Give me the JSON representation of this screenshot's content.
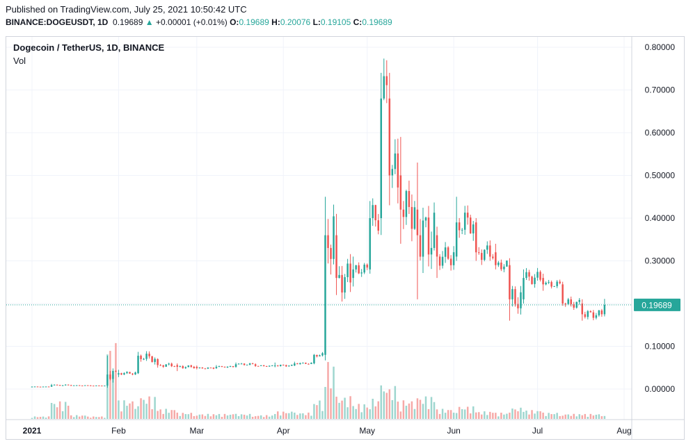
{
  "header": {
    "published": "Published on TradingView.com, July 25, 2021 10:50:42 UTC",
    "symbol": "BINANCE:DOGEUSDT, 1D",
    "last": "0.19689",
    "change_arrow": "▲",
    "change": "+0.00001 (+0.01%)",
    "o_label": "O:",
    "o_value": "0.19689",
    "h_label": "H:",
    "h_value": "0.20076",
    "l_label": "L:",
    "l_value": "0.19105",
    "c_label": "C:",
    "c_value": "0.19689"
  },
  "legend": {
    "title": "Dogecoin / TetherUS, 1D, BINANCE",
    "vol": "Vol"
  },
  "colors": {
    "up": "#26a69a",
    "down": "#ef5350",
    "up_vol": "#9ed6cf",
    "down_vol": "#f6a9a7",
    "grid": "#f0f3fa",
    "price_line": "#26a69a"
  },
  "chart_data": {
    "type": "candlestick",
    "title": "Dogecoin / TetherUS, 1D, BINANCE",
    "y_tick_labels": [
      "0.80000",
      "0.70000",
      "0.60000",
      "0.50000",
      "0.40000",
      "0.30000",
      "0.10000",
      "0.00000"
    ],
    "y_ticks": [
      0.8,
      0.7,
      0.6,
      0.5,
      0.4,
      0.3,
      0.1,
      0.0
    ],
    "ylim": [
      -0.07,
      0.82
    ],
    "x_tick_labels": [
      "2021",
      "Feb",
      "Mar",
      "Apr",
      "May",
      "Jun",
      "Jul",
      "Aug"
    ],
    "x_ticks": [
      "2021-01-01",
      "2021-02-01",
      "2021-03-01",
      "2021-04-01",
      "2021-05-01",
      "2021-06-01",
      "2021-07-01",
      "2021-08-01"
    ],
    "last_price": 0.19689,
    "last_price_label": "0.19689",
    "series": [
      {
        "name": "Vol",
        "values": []
      }
    ],
    "candles_by_week": [
      {
        "date": "2021-01-01",
        "open": 0.0047,
        "high": 0.006,
        "low": 0.0045,
        "close": 0.0056,
        "vol": 0.2
      },
      {
        "date": "2021-01-08",
        "open": 0.0056,
        "high": 0.012,
        "low": 0.005,
        "close": 0.009,
        "vol": 1.4
      },
      {
        "date": "2021-01-15",
        "open": 0.009,
        "high": 0.01,
        "low": 0.0075,
        "close": 0.0085,
        "vol": 0.3
      },
      {
        "date": "2021-01-22",
        "open": 0.0085,
        "high": 0.009,
        "low": 0.0072,
        "close": 0.008,
        "vol": 0.2
      },
      {
        "date": "2021-01-28",
        "open": 0.008,
        "high": 0.078,
        "low": 0.0075,
        "close": 0.034,
        "vol": 6.0
      },
      {
        "date": "2021-02-01",
        "open": 0.034,
        "high": 0.045,
        "low": 0.028,
        "close": 0.037,
        "vol": 1.5
      },
      {
        "date": "2021-02-08",
        "open": 0.037,
        "high": 0.087,
        "low": 0.036,
        "close": 0.078,
        "vol": 1.8
      },
      {
        "date": "2021-02-15",
        "open": 0.07,
        "high": 0.072,
        "low": 0.05,
        "close": 0.056,
        "vol": 0.8
      },
      {
        "date": "2021-02-22",
        "open": 0.056,
        "high": 0.06,
        "low": 0.042,
        "close": 0.052,
        "vol": 0.5
      },
      {
        "date": "2021-03-01",
        "open": 0.052,
        "high": 0.055,
        "low": 0.046,
        "close": 0.049,
        "vol": 0.4
      },
      {
        "date": "2021-03-08",
        "open": 0.049,
        "high": 0.056,
        "low": 0.047,
        "close": 0.052,
        "vol": 0.4
      },
      {
        "date": "2021-03-15",
        "open": 0.052,
        "high": 0.062,
        "low": 0.05,
        "close": 0.058,
        "vol": 0.4
      },
      {
        "date": "2021-03-22",
        "open": 0.058,
        "high": 0.06,
        "low": 0.052,
        "close": 0.054,
        "vol": 0.3
      },
      {
        "date": "2021-03-29",
        "open": 0.054,
        "high": 0.062,
        "low": 0.051,
        "close": 0.055,
        "vol": 0.6
      },
      {
        "date": "2021-04-05",
        "open": 0.055,
        "high": 0.064,
        "low": 0.054,
        "close": 0.06,
        "vol": 0.5
      },
      {
        "date": "2021-04-12",
        "open": 0.06,
        "high": 0.08,
        "low": 0.058,
        "close": 0.08,
        "vol": 1.5
      },
      {
        "date": "2021-04-16",
        "open": 0.08,
        "high": 0.45,
        "low": 0.078,
        "close": 0.36,
        "vol": 4.5
      },
      {
        "date": "2021-04-20",
        "open": 0.36,
        "high": 0.41,
        "low": 0.22,
        "close": 0.26,
        "vol": 1.8
      },
      {
        "date": "2021-04-26",
        "open": 0.26,
        "high": 0.31,
        "low": 0.24,
        "close": 0.28,
        "vol": 1.2
      },
      {
        "date": "2021-05-02",
        "open": 0.28,
        "high": 0.44,
        "low": 0.27,
        "close": 0.4,
        "vol": 1.6
      },
      {
        "date": "2021-05-06",
        "open": 0.4,
        "high": 0.74,
        "low": 0.38,
        "close": 0.68,
        "vol": 2.8
      },
      {
        "date": "2021-05-09",
        "open": 0.68,
        "high": 0.74,
        "low": 0.43,
        "close": 0.5,
        "vol": 2.6
      },
      {
        "date": "2021-05-13",
        "open": 0.5,
        "high": 0.59,
        "low": 0.34,
        "close": 0.42,
        "vol": 1.5
      },
      {
        "date": "2021-05-19",
        "open": 0.42,
        "high": 0.53,
        "low": 0.21,
        "close": 0.36,
        "vol": 1.8
      },
      {
        "date": "2021-05-26",
        "open": 0.36,
        "high": 0.38,
        "low": 0.26,
        "close": 0.31,
        "vol": 0.8
      },
      {
        "date": "2021-06-02",
        "open": 0.31,
        "high": 0.45,
        "low": 0.3,
        "close": 0.39,
        "vol": 1.0
      },
      {
        "date": "2021-06-09",
        "open": 0.39,
        "high": 0.4,
        "low": 0.3,
        "close": 0.32,
        "vol": 0.6
      },
      {
        "date": "2021-06-16",
        "open": 0.32,
        "high": 0.34,
        "low": 0.28,
        "close": 0.29,
        "vol": 0.5
      },
      {
        "date": "2021-06-21",
        "open": 0.29,
        "high": 0.3,
        "low": 0.16,
        "close": 0.21,
        "vol": 0.9
      },
      {
        "date": "2021-06-26",
        "open": 0.21,
        "high": 0.28,
        "low": 0.2,
        "close": 0.26,
        "vol": 0.7
      },
      {
        "date": "2021-07-03",
        "open": 0.26,
        "high": 0.27,
        "low": 0.23,
        "close": 0.245,
        "vol": 0.5
      },
      {
        "date": "2021-07-10",
        "open": 0.245,
        "high": 0.25,
        "low": 0.195,
        "close": 0.2,
        "vol": 0.4
      },
      {
        "date": "2021-07-17",
        "open": 0.2,
        "high": 0.21,
        "low": 0.16,
        "close": 0.175,
        "vol": 0.4
      },
      {
        "date": "2021-07-25",
        "open": 0.175,
        "high": 0.211,
        "low": 0.17,
        "close": 0.1969,
        "vol": 0.3
      }
    ]
  }
}
